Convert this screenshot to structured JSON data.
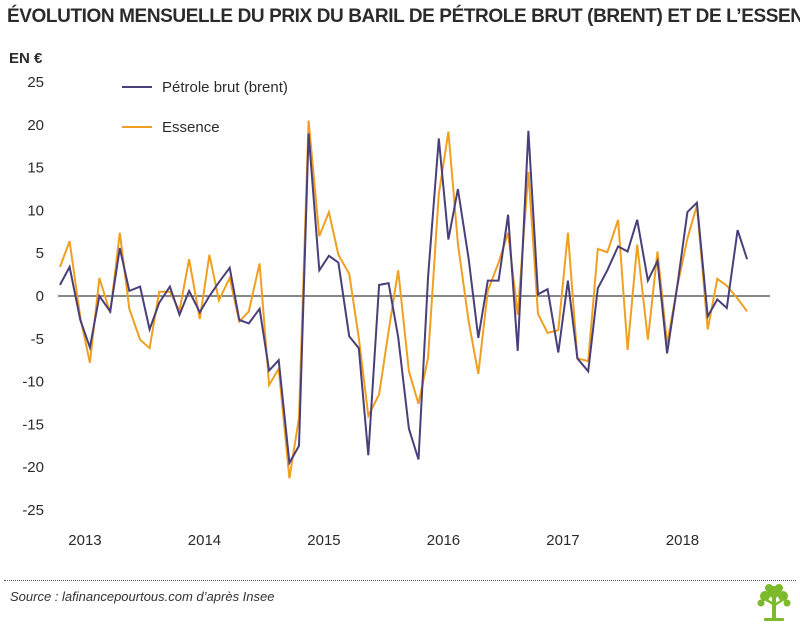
{
  "chart_data": {
    "type": "line",
    "title": "ÉVOLUTION MENSUELLE DU PRIX DU BARIL DE PÉTROLE BRUT (BRENT) ET DE L’ESSENCE",
    "ylabel": "EN €",
    "xlabel": "",
    "ylim": [
      -25,
      25
    ],
    "yticks": [
      25,
      20,
      15,
      10,
      5,
      0,
      -5,
      -10,
      -15,
      -20,
      -25
    ],
    "xlim": [
      2012.95,
      2018.7
    ],
    "xticks": [
      {
        "label": "2013",
        "x": 2013
      },
      {
        "label": "2014",
        "x": 2014
      },
      {
        "label": "2015",
        "x": 2015
      },
      {
        "label": "2016",
        "x": 2016
      },
      {
        "label": "2017",
        "x": 2017
      },
      {
        "label": "2018",
        "x": 2018
      }
    ],
    "legend_position": "top-left",
    "grid": false,
    "zero_line": true,
    "series": [
      {
        "name": "Pétrole brut (brent)",
        "color": "#4a3f7a",
        "points": [
          [
            2012.95,
            1.3
          ],
          [
            2013.03,
            3.4
          ],
          [
            2013.12,
            -2.8
          ],
          [
            2013.2,
            -6.0
          ],
          [
            2013.28,
            0.0
          ],
          [
            2013.37,
            -1.8
          ],
          [
            2013.45,
            5.6
          ],
          [
            2013.53,
            0.6
          ],
          [
            2013.62,
            1.1
          ],
          [
            2013.7,
            -3.9
          ],
          [
            2013.78,
            -0.8
          ],
          [
            2013.87,
            1.1
          ],
          [
            2013.95,
            -2.2
          ],
          [
            2014.03,
            0.6
          ],
          [
            2014.12,
            -1.9
          ],
          [
            2014.2,
            0.0
          ],
          [
            2014.28,
            1.6
          ],
          [
            2014.37,
            3.3
          ],
          [
            2014.45,
            -2.8
          ],
          [
            2014.53,
            -3.2
          ],
          [
            2014.62,
            -1.5
          ],
          [
            2014.7,
            -8.7
          ],
          [
            2014.78,
            -7.5
          ],
          [
            2014.87,
            -19.5
          ],
          [
            2014.95,
            -17.5
          ],
          [
            2015.03,
            19.0
          ],
          [
            2015.12,
            3.0
          ],
          [
            2015.2,
            4.7
          ],
          [
            2015.28,
            3.9
          ],
          [
            2015.37,
            -4.7
          ],
          [
            2015.45,
            -6.1
          ],
          [
            2015.53,
            -18.6
          ],
          [
            2015.62,
            1.3
          ],
          [
            2015.7,
            1.5
          ],
          [
            2015.78,
            -4.8
          ],
          [
            2015.87,
            -15.5
          ],
          [
            2015.95,
            -19.1
          ],
          [
            2016.03,
            2.3
          ],
          [
            2016.12,
            18.4
          ],
          [
            2016.2,
            6.6
          ],
          [
            2016.28,
            12.5
          ],
          [
            2016.37,
            4.3
          ],
          [
            2016.45,
            -4.9
          ],
          [
            2016.53,
            1.8
          ],
          [
            2016.62,
            1.8
          ],
          [
            2016.7,
            9.5
          ],
          [
            2016.78,
            -6.4
          ],
          [
            2016.87,
            19.3
          ],
          [
            2016.95,
            0.2
          ],
          [
            2017.03,
            0.8
          ],
          [
            2017.12,
            -6.6
          ],
          [
            2017.2,
            1.8
          ],
          [
            2017.28,
            -7.3
          ],
          [
            2017.37,
            -8.8
          ],
          [
            2017.45,
            0.9
          ],
          [
            2017.53,
            3.0
          ],
          [
            2017.62,
            5.8
          ],
          [
            2017.7,
            5.2
          ],
          [
            2017.78,
            8.9
          ],
          [
            2017.87,
            1.8
          ],
          [
            2017.95,
            4.1
          ],
          [
            2018.03,
            -6.7
          ],
          [
            2018.12,
            1.6
          ],
          [
            2018.2,
            9.8
          ],
          [
            2018.28,
            10.9
          ],
          [
            2018.37,
            -2.4
          ],
          [
            2018.45,
            -0.4
          ],
          [
            2018.53,
            -1.4
          ],
          [
            2018.62,
            7.7
          ],
          [
            2018.7,
            4.3
          ]
        ]
      },
      {
        "name": "Essence",
        "color": "#f0a020",
        "points": [
          [
            2012.95,
            3.4
          ],
          [
            2013.03,
            6.4
          ],
          [
            2013.12,
            -2.5
          ],
          [
            2013.2,
            -7.8
          ],
          [
            2013.28,
            2.1
          ],
          [
            2013.37,
            -2.0
          ],
          [
            2013.45,
            7.4
          ],
          [
            2013.53,
            -1.5
          ],
          [
            2013.62,
            -5.1
          ],
          [
            2013.7,
            -6.1
          ],
          [
            2013.78,
            0.5
          ],
          [
            2013.87,
            0.5
          ],
          [
            2013.95,
            -1.7
          ],
          [
            2014.03,
            4.3
          ],
          [
            2014.12,
            -2.7
          ],
          [
            2014.2,
            4.8
          ],
          [
            2014.28,
            -0.5
          ],
          [
            2014.37,
            2.1
          ],
          [
            2014.45,
            -3.0
          ],
          [
            2014.53,
            -1.8
          ],
          [
            2014.62,
            3.8
          ],
          [
            2014.7,
            -10.4
          ],
          [
            2014.78,
            -8.5
          ],
          [
            2014.87,
            -21.3
          ],
          [
            2014.95,
            -14.2
          ],
          [
            2015.03,
            20.5
          ],
          [
            2015.12,
            7.0
          ],
          [
            2015.2,
            9.8
          ],
          [
            2015.28,
            4.8
          ],
          [
            2015.37,
            2.6
          ],
          [
            2015.45,
            -4.9
          ],
          [
            2015.53,
            -14.0
          ],
          [
            2015.62,
            -11.5
          ],
          [
            2015.7,
            -4.1
          ],
          [
            2015.78,
            3.0
          ],
          [
            2015.87,
            -8.8
          ],
          [
            2015.95,
            -12.6
          ],
          [
            2016.03,
            -7.2
          ],
          [
            2016.12,
            11.9
          ],
          [
            2016.2,
            19.2
          ],
          [
            2016.28,
            6.1
          ],
          [
            2016.37,
            -3.0
          ],
          [
            2016.45,
            -9.1
          ],
          [
            2016.53,
            0.6
          ],
          [
            2016.62,
            3.9
          ],
          [
            2016.7,
            7.4
          ],
          [
            2016.78,
            -2.2
          ],
          [
            2016.87,
            14.5
          ],
          [
            2016.95,
            -2.1
          ],
          [
            2017.03,
            -4.3
          ],
          [
            2017.12,
            -4.0
          ],
          [
            2017.2,
            7.4
          ],
          [
            2017.28,
            -7.3
          ],
          [
            2017.37,
            -7.6
          ],
          [
            2017.45,
            5.5
          ],
          [
            2017.53,
            5.1
          ],
          [
            2017.62,
            8.9
          ],
          [
            2017.7,
            -6.3
          ],
          [
            2017.78,
            6.0
          ],
          [
            2017.87,
            -5.1
          ],
          [
            2017.95,
            5.2
          ],
          [
            2018.03,
            -5.6
          ],
          [
            2018.12,
            1.4
          ],
          [
            2018.2,
            6.7
          ],
          [
            2018.28,
            10.6
          ],
          [
            2018.37,
            -3.9
          ],
          [
            2018.45,
            2.0
          ],
          [
            2018.53,
            1.2
          ],
          [
            2018.62,
            -0.3
          ],
          [
            2018.7,
            -1.8
          ]
        ]
      }
    ]
  },
  "footer": {
    "source": "Source : lafinancepourtous.com d’après Insee"
  },
  "colors": {
    "brent": "#4a3f7a",
    "essence": "#f0a020",
    "logo": "#7cba2b"
  }
}
